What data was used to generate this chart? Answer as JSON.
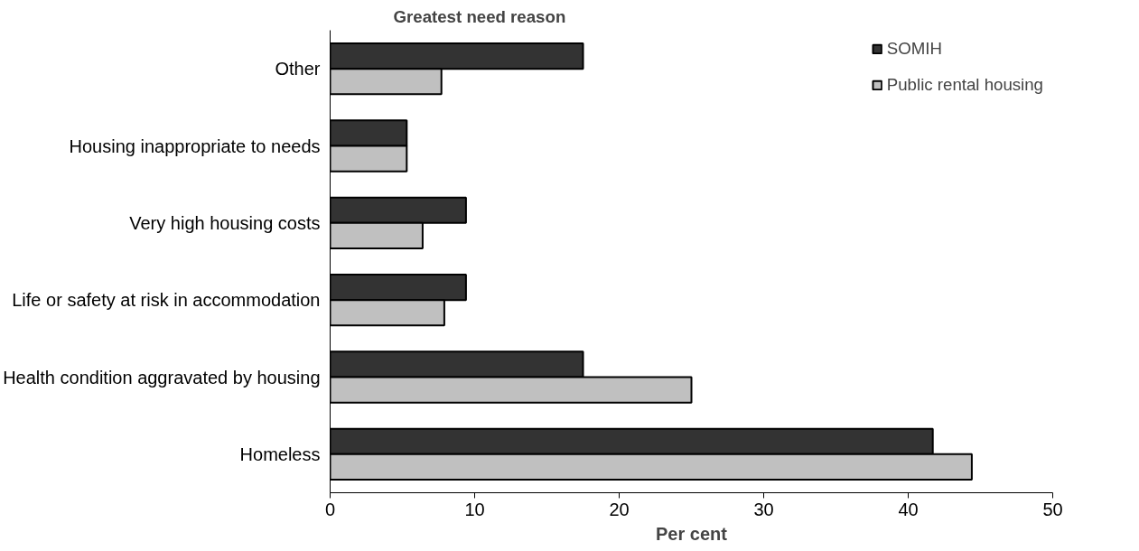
{
  "chart_data": {
    "type": "bar",
    "orientation": "horizontal",
    "title": "Greatest need reason",
    "xlabel": "Per cent",
    "categories": [
      "Other",
      "Housing inappropriate to needs",
      "Very high housing costs",
      "Life or safety at risk in accommodation",
      "Health condition aggravated by housing",
      "Homeless"
    ],
    "series": [
      {
        "name": "SOMIH",
        "color": "#333333",
        "values": [
          17.5,
          5.3,
          9.4,
          9.4,
          17.5,
          41.7
        ]
      },
      {
        "name": "Public rental housing",
        "color": "#c0c0c0",
        "values": [
          7.7,
          5.3,
          6.4,
          7.9,
          25.0,
          44.4
        ]
      }
    ],
    "xlim": [
      0,
      50
    ],
    "xticks": [
      0,
      10,
      20,
      30,
      40,
      50
    ],
    "grid": false,
    "legend": "top right"
  }
}
